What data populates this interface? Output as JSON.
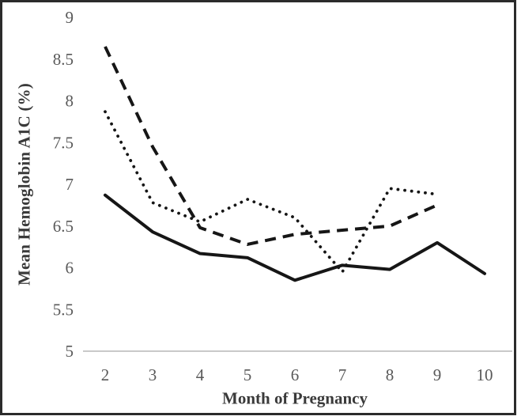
{
  "chart_data": {
    "type": "line",
    "x": [
      2,
      3,
      4,
      5,
      6,
      7,
      8,
      9,
      10
    ],
    "series": [
      {
        "name": "solid-series",
        "style": "solid",
        "values": [
          6.87,
          6.43,
          6.17,
          6.12,
          5.85,
          6.03,
          5.98,
          6.3,
          5.93
        ]
      },
      {
        "name": "dashed-series",
        "style": "dashed",
        "values": [
          8.65,
          7.45,
          6.48,
          6.28,
          6.4,
          6.45,
          6.5,
          6.75,
          null
        ]
      },
      {
        "name": "dotted-series",
        "style": "dotted",
        "values": [
          7.87,
          6.78,
          6.55,
          6.82,
          6.6,
          5.95,
          6.95,
          6.88,
          null
        ]
      }
    ],
    "title": "",
    "xlabel": "Month of Pregnancy",
    "ylabel": "Mean Hemoglobin A1C (%)",
    "ylim": [
      5,
      9
    ],
    "ytick_step": 0.5,
    "xticks": [
      "2",
      "3",
      "4",
      "5",
      "6",
      "7",
      "8",
      "9",
      "10"
    ],
    "yticks": [
      "5",
      "5.5",
      "6",
      "6.5",
      "7",
      "7.5",
      "8",
      "8.5",
      "9"
    ],
    "grid": false,
    "legend": "none"
  },
  "colors": {
    "line": "#161616",
    "tick_label": "#595959",
    "axis_line": "#c9c9c9",
    "frame_border": "#2b2b2b",
    "title_text": "#3a3a3a"
  }
}
